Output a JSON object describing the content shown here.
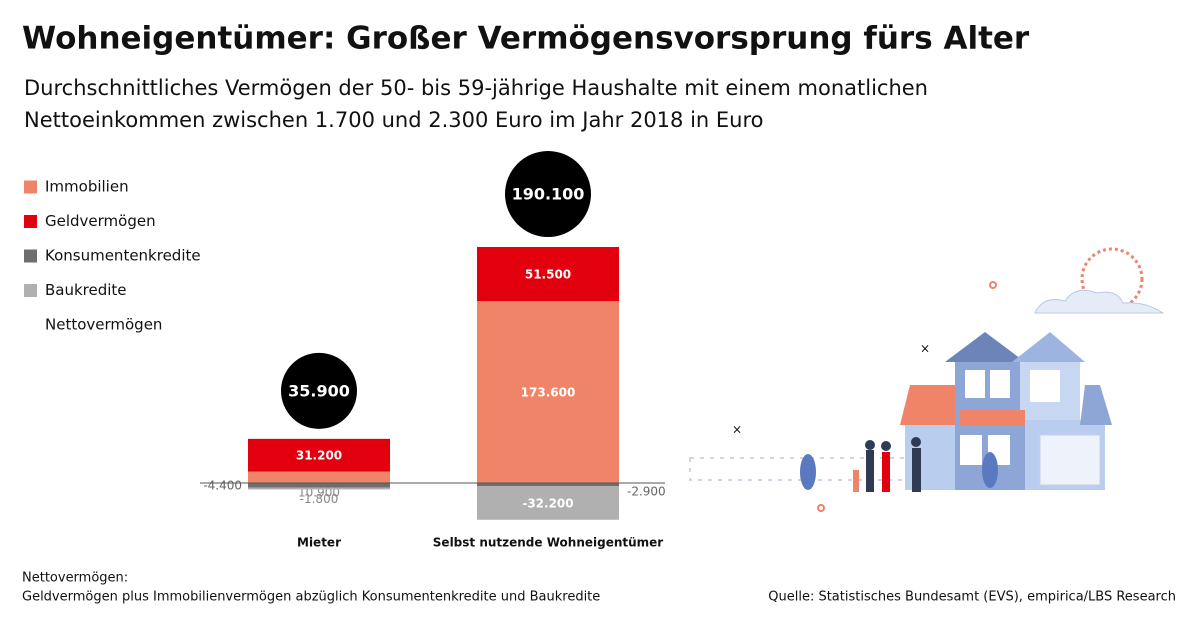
{
  "chart_data": {
    "type": "bar",
    "stacked": true,
    "title": "Wohneigentümer: Großer Vermögensvorsprung fürs Alter",
    "subtitle": [
      "Durchschnittliches Vermögen der 50- bis 59-jährige Haushalte mit einem monatlichen",
      "Nettoeinkommen zwischen 1.700 und 2.300 Euro im Jahr 2018 in Euro"
    ],
    "categories": [
      "Mieter",
      "Selbst nutzende Wohneigentümer"
    ],
    "series": [
      {
        "name": "Immobilien",
        "color": "#ef8468",
        "values": [
          10900,
          173600
        ],
        "value_labels": [
          "10.900",
          "173.600"
        ]
      },
      {
        "name": "Geldvermögen",
        "color": "#e2000f",
        "values": [
          31200,
          51500
        ],
        "value_labels": [
          "31.200",
          "51.500"
        ]
      },
      {
        "name": "Konsumentenkredite",
        "color": "#6e6e6e",
        "values": [
          -4400,
          -2900
        ],
        "value_labels": [
          "-4.400",
          "-2.900"
        ]
      },
      {
        "name": "Baukredite",
        "color": "#b0b0b0",
        "values": [
          -1800,
          -32200
        ],
        "value_labels": [
          "-1.800",
          "-32.200"
        ]
      }
    ],
    "net": {
      "name": "Nettovermögen",
      "color": "#000000",
      "values": [
        35900,
        190100
      ],
      "value_labels": [
        "35.900",
        "190.100"
      ]
    },
    "ylim": [
      -100000,
      300000
    ],
    "note_title": "Nettovermögen:",
    "note": "Geldvermögen plus Immobilienvermögen abzüglich Konsumentenkredite und Baukredite",
    "source": "Quelle: Statistisches Bundesamt (EVS), empirica/LBS Research"
  }
}
